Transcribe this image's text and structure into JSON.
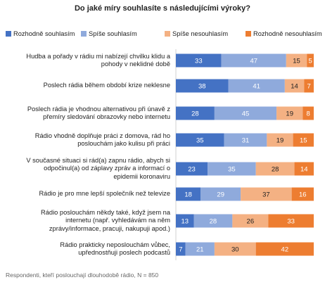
{
  "chart_data": {
    "type": "bar",
    "orientation": "horizontal",
    "stacked": true,
    "title": "Do jaké míry souhlasíte  s následujícími výroky?",
    "legend_position": "top",
    "categories": [
      [
        "Hudba a pořady v rádiu mi nabízejí chvilku klidu a",
        "pohody v neklidné době"
      ],
      [
        "Poslech rádia během období krize neklesne"
      ],
      [
        "Poslech rádia je vhodnou alternativou při únavě z",
        "přemíry sledování obrazovky nebo internetu"
      ],
      [
        "Rádio vhodně doplňuje práci z domova, rád ho",
        "poslouchám jako kulisu při práci"
      ],
      [
        "V současné situaci si rád(a) zapnu rádio, abych si",
        "odpočinul(a) od záplavy zpráv a informací o",
        "epidemii koronaviru"
      ],
      [
        "Rádio je pro mne lepší společník než televize"
      ],
      [
        "Rádio poslouchám někdy také, když jsem na",
        "internetu (např. vyhledávám na něm",
        "zprávy/informace, pracuji, nakupuji apod.)"
      ],
      [
        "Rádio prakticky neposlouchám vůbec,",
        "upřednostňuji poslech podcastů"
      ]
    ],
    "series": [
      {
        "name": "Rozhodně souhlasím",
        "color": "#4472C4",
        "values": [
          33,
          38,
          28,
          35,
          23,
          18,
          13,
          7
        ]
      },
      {
        "name": "Spíše souhlasím",
        "color": "#8FAADC",
        "values": [
          47,
          41,
          45,
          31,
          35,
          29,
          28,
          21
        ]
      },
      {
        "name": "Spíše nesouhlasím",
        "color": "#F4B183",
        "values": [
          15,
          14,
          19,
          19,
          28,
          37,
          26,
          30
        ]
      },
      {
        "name": "Rozhodně nesouhlasím",
        "color": "#ED7D31",
        "values": [
          5,
          7,
          8,
          15,
          14,
          16,
          33,
          42
        ]
      }
    ],
    "xlim": [
      0,
      100
    ],
    "grid": false,
    "footnote": "Respondenti,  kteří poslouchají  dlouhodobě  rádio, N = 850"
  }
}
